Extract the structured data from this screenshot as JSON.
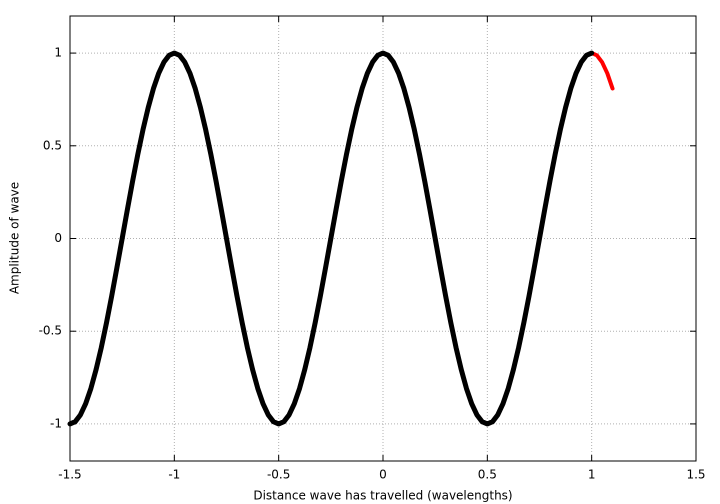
{
  "chart_data": {
    "type": "line",
    "xlabel": "Distance wave has travelled (wavelengths)",
    "ylabel": "Amplitude of wave",
    "xlim": [
      -1.5,
      1.5
    ],
    "xticks": [
      -1.5,
      -1,
      -0.5,
      0,
      0.5,
      1,
      1.5
    ],
    "ylim": [
      -1.2,
      1.2
    ],
    "yticks": [
      -1,
      -0.5,
      0,
      0.5,
      1
    ],
    "grid": true,
    "series": [
      {
        "color": "#ff0000",
        "x": [
          1,
          1.025,
          1.05,
          1.075,
          1.1
        ],
        "values": [
          1,
          0.988,
          0.951,
          0.891,
          0.809
        ]
      },
      {
        "color": "#000000",
        "x": [
          -1.5,
          -1.475,
          -1.45,
          -1.425,
          -1.4,
          -1.375,
          -1.35,
          -1.325,
          -1.3,
          -1.275,
          -1.25,
          -1.225,
          -1.2,
          -1.175,
          -1.15,
          -1.125,
          -1.1,
          -1.075,
          -1.05,
          -1.025,
          -1,
          -0.975,
          -0.95,
          -0.925,
          -0.9,
          -0.875,
          -0.85,
          -0.825,
          -0.8,
          -0.775,
          -0.75,
          -0.725,
          -0.7,
          -0.675,
          -0.65,
          -0.625,
          -0.6,
          -0.575,
          -0.55,
          -0.525,
          -0.5,
          -0.475,
          -0.45,
          -0.425,
          -0.4,
          -0.375,
          -0.35,
          -0.325,
          -0.3,
          -0.275,
          -0.25,
          -0.225,
          -0.2,
          -0.175,
          -0.15,
          -0.125,
          -0.1,
          -0.075,
          -0.05,
          -0.025,
          0,
          0.025,
          0.05,
          0.075,
          0.1,
          0.125,
          0.15,
          0.175,
          0.2,
          0.225,
          0.25,
          0.275,
          0.3,
          0.325,
          0.35,
          0.375,
          0.4,
          0.425,
          0.45,
          0.475,
          0.5,
          0.525,
          0.55,
          0.575,
          0.6,
          0.625,
          0.65,
          0.675,
          0.7,
          0.725,
          0.75,
          0.775,
          0.8,
          0.825,
          0.85,
          0.875,
          0.9,
          0.925,
          0.95,
          0.975,
          1
        ],
        "values": [
          -1,
          -0.988,
          -0.951,
          -0.891,
          -0.809,
          -0.707,
          -0.588,
          -0.454,
          -0.309,
          -0.156,
          0,
          0.156,
          0.309,
          0.454,
          0.588,
          0.707,
          0.809,
          0.891,
          0.951,
          0.988,
          1,
          0.988,
          0.951,
          0.891,
          0.809,
          0.707,
          0.588,
          0.454,
          0.309,
          0.156,
          0,
          -0.156,
          -0.309,
          -0.454,
          -0.588,
          -0.707,
          -0.809,
          -0.891,
          -0.951,
          -0.988,
          -1,
          -0.988,
          -0.951,
          -0.891,
          -0.809,
          -0.707,
          -0.588,
          -0.454,
          -0.309,
          -0.156,
          0,
          0.156,
          0.309,
          0.454,
          0.588,
          0.707,
          0.809,
          0.891,
          0.951,
          0.988,
          1,
          0.988,
          0.951,
          0.891,
          0.809,
          0.707,
          0.588,
          0.454,
          0.309,
          0.156,
          0,
          -0.156,
          -0.309,
          -0.454,
          -0.588,
          -0.707,
          -0.809,
          -0.891,
          -0.951,
          -0.988,
          -1,
          -0.988,
          -0.951,
          -0.891,
          -0.809,
          -0.707,
          -0.588,
          -0.454,
          -0.309,
          -0.156,
          0,
          0.156,
          0.309,
          0.454,
          0.588,
          0.707,
          0.809,
          0.891,
          0.951,
          0.988,
          1
        ]
      }
    ]
  }
}
